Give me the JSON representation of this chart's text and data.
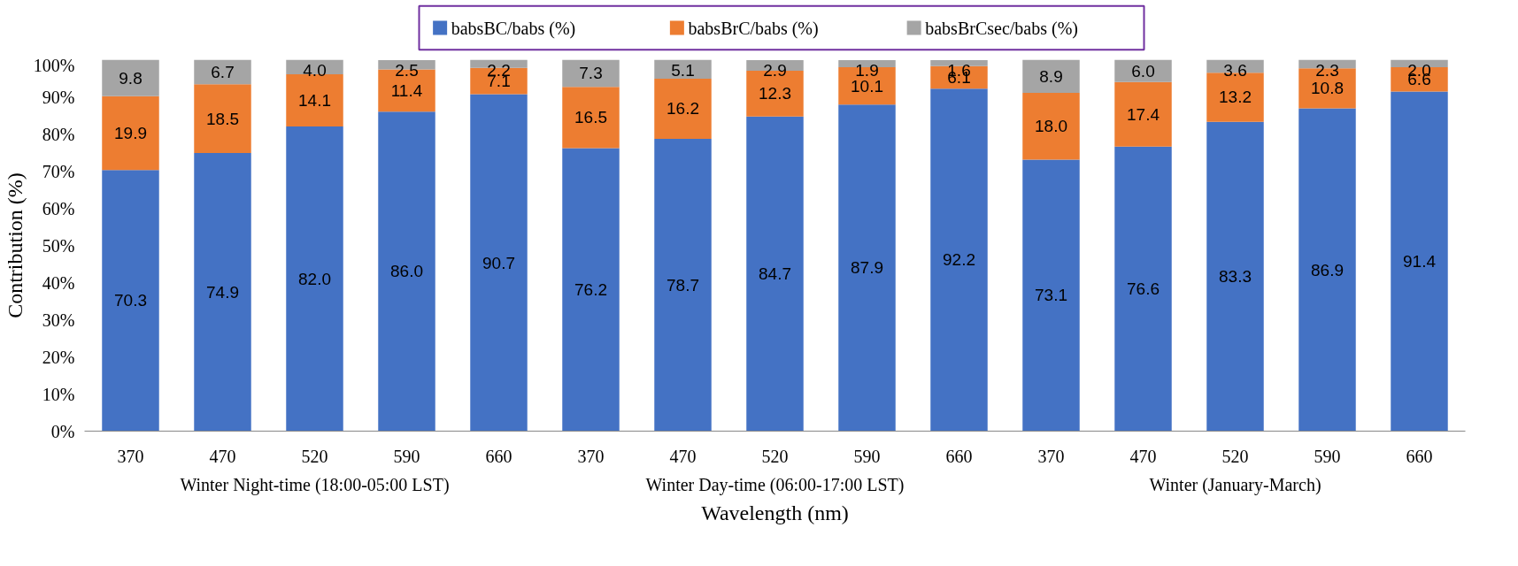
{
  "chart_data": {
    "type": "bar",
    "stacked": true,
    "xlabel": "Wavelength (nm)",
    "ylabel": "Contribution (%)",
    "categories": [
      "370",
      "470",
      "520",
      "590",
      "660",
      "370",
      "470",
      "520",
      "590",
      "660",
      "370",
      "470",
      "520",
      "590",
      "660"
    ],
    "annotations": [
      "Winter Night-time (18:00-05:00 LST)",
      "Winter Day-time (06:00-17:00 LST)",
      "Winter (January-March)"
    ],
    "series": [
      {
        "name": "babsBC/babs (%)",
        "color": "#4472c4",
        "values": [
          70.3,
          74.9,
          82.0,
          86.0,
          90.7,
          76.2,
          78.7,
          84.7,
          87.9,
          92.2,
          73.1,
          76.6,
          83.3,
          86.9,
          91.4
        ],
        "value_labels": [
          "70.3",
          "74.9",
          "82.0",
          "86.0",
          "90.7",
          "76.2",
          "78.7",
          "84.7",
          "87.9",
          "92.2",
          "73.1",
          "76.6",
          "83.3",
          "86.9",
          "91.4"
        ]
      },
      {
        "name": "babsBrC/babs (%)",
        "color": "#ed7d31",
        "values": [
          19.9,
          18.5,
          14.1,
          11.4,
          7.1,
          16.5,
          16.2,
          12.3,
          10.1,
          6.1,
          18.0,
          17.4,
          13.2,
          10.8,
          6.6
        ],
        "value_labels": [
          "19.9",
          "18.5",
          "14.1",
          "11.4",
          "7.1",
          "16.5",
          "16.2",
          "12.3",
          "10.1",
          "6.1",
          "18.0",
          "17.4",
          "13.2",
          "10.8",
          "6.6"
        ]
      },
      {
        "name": "babsBrCsec/babs (%)",
        "color": "#a5a5a5",
        "values": [
          9.8,
          6.7,
          4.0,
          2.5,
          2.2,
          7.3,
          5.1,
          2.9,
          1.9,
          1.6,
          8.9,
          6.0,
          3.6,
          2.3,
          2.0
        ],
        "value_labels": [
          "9.8",
          "6.7",
          "4.0",
          "2.5",
          "2.2",
          "7.3",
          "5.1",
          "2.9",
          "1.9",
          "1.6",
          "8.9",
          "6.0",
          "3.6",
          "2.3",
          "2.0"
        ]
      }
    ],
    "ylim": [
      0,
      100
    ],
    "yticks": [
      {
        "value": 0,
        "label": "0%"
      },
      {
        "value": 10,
        "label": "10%"
      },
      {
        "value": 20,
        "label": "20%"
      },
      {
        "value": 30,
        "label": "30%"
      },
      {
        "value": 40,
        "label": "40%"
      },
      {
        "value": 50,
        "label": "50%"
      },
      {
        "value": 60,
        "label": "60%"
      },
      {
        "value": 70,
        "label": "70%"
      },
      {
        "value": 80,
        "label": "80%"
      },
      {
        "value": 90,
        "label": "90%"
      },
      {
        "value": 100,
        "label": "100%"
      }
    ],
    "legend": "top",
    "grid": false
  }
}
